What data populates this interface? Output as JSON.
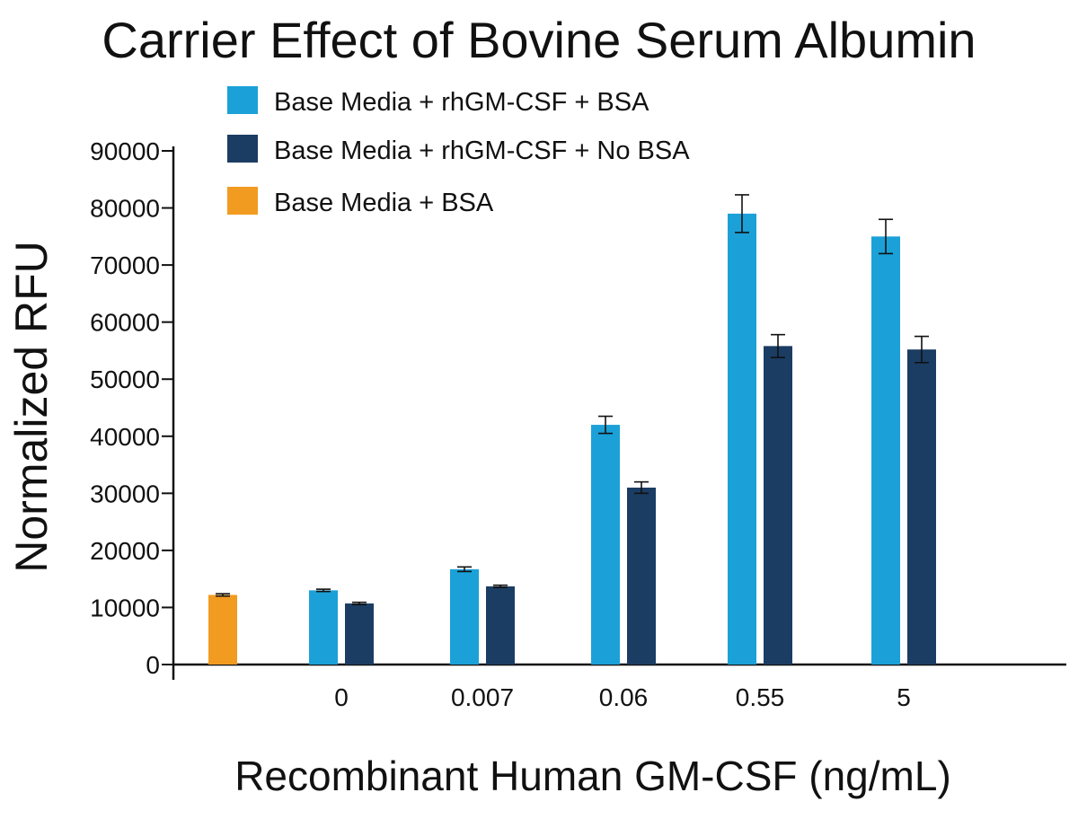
{
  "chart_data": {
    "type": "bar",
    "title": "Carrier Effect of Bovine Serum Albumin",
    "xlabel": "Recombinant Human GM-CSF (ng/mL)",
    "ylabel": "Normalized RFU",
    "ylim": [
      0,
      90000
    ],
    "yticks": [
      0,
      10000,
      20000,
      30000,
      40000,
      50000,
      60000,
      70000,
      80000,
      90000
    ],
    "categories": [
      "",
      "0",
      "0.007",
      "0.06",
      "0.55",
      "5"
    ],
    "legend_position": "top-left",
    "grid": false,
    "series": [
      {
        "name": "Base Media + rhGM-CSF + BSA",
        "color": "#1ba1d8",
        "values": [
          null,
          13000,
          16700,
          42000,
          79000,
          75000
        ],
        "errors": [
          null,
          200,
          400,
          1500,
          3300,
          3000
        ]
      },
      {
        "name": "Base Media + rhGM-CSF + No BSA",
        "color": "#1b3d63",
        "values": [
          null,
          10700,
          13700,
          31000,
          55800,
          55200
        ],
        "errors": [
          null,
          200,
          200,
          1000,
          2000,
          2300
        ]
      },
      {
        "name": "Base Media + BSA",
        "color": "#f29b21",
        "values": [
          12200,
          null,
          null,
          null,
          null,
          null
        ],
        "errors": [
          200,
          null,
          null,
          null,
          null,
          null
        ]
      }
    ]
  }
}
